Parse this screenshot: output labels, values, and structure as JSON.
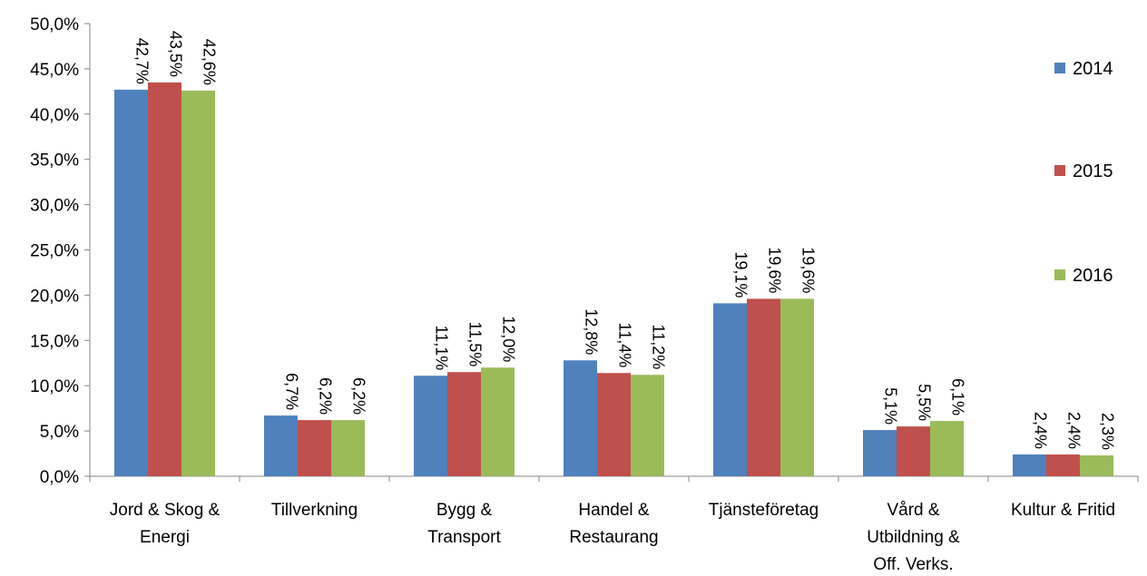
{
  "chart_data": {
    "type": "bar",
    "categories": [
      [
        "Jord & Skog &",
        "Energi"
      ],
      [
        "Tillverkning"
      ],
      [
        "Bygg &",
        "Transport"
      ],
      [
        "Handel &",
        "Restaurang"
      ],
      [
        "Tjänsteföretag"
      ],
      [
        "Vård &",
        "Utbildning &",
        "Off. Verks."
      ],
      [
        "Kultur & Fritid"
      ]
    ],
    "series": [
      {
        "name": "2014",
        "color": "#4F81BD",
        "values": [
          42.7,
          6.7,
          11.1,
          12.8,
          19.1,
          5.1,
          2.4
        ],
        "labels": [
          "42,7%",
          "6,7%",
          "11,1%",
          "12,8%",
          "19,1%",
          "5,1%",
          "2,4%"
        ]
      },
      {
        "name": "2015",
        "color": "#C0504D",
        "values": [
          43.5,
          6.2,
          11.5,
          11.4,
          19.6,
          5.5,
          2.4
        ],
        "labels": [
          "43,5%",
          "6,2%",
          "11,5%",
          "11,4%",
          "19,6%",
          "5,5%",
          "2,4%"
        ]
      },
      {
        "name": "2016",
        "color": "#9BBB59",
        "values": [
          42.6,
          6.2,
          12.0,
          11.2,
          19.6,
          6.1,
          2.3
        ],
        "labels": [
          "42,6%",
          "6,2%",
          "12,0%",
          "11,2%",
          "19,6%",
          "6,1%",
          "2,3%"
        ]
      }
    ],
    "y_ticks": [
      0,
      5,
      10,
      15,
      20,
      25,
      30,
      35,
      40,
      45,
      50
    ],
    "y_tick_labels": [
      "0,0%",
      "5,0%",
      "10,0%",
      "15,0%",
      "20,0%",
      "25,0%",
      "30,0%",
      "35,0%",
      "40,0%",
      "45,0%",
      "50,0%"
    ],
    "ylim": [
      0,
      50
    ],
    "grid": false,
    "legend_position": "right",
    "title": "",
    "xlabel": "",
    "ylabel": ""
  }
}
